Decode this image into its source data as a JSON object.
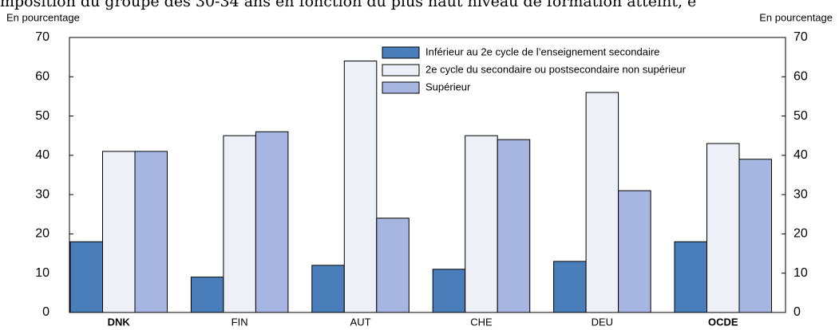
{
  "chart_data": {
    "type": "bar",
    "title": "mposition du groupe des 30-34 ans en fonction du plus haut niveau de formation atteint, e",
    "y_label": "En pourcentage",
    "y2_label": "En pourcentage",
    "categories": [
      "DNK",
      "FIN",
      "AUT",
      "CHE",
      "DEU",
      "OCDE"
    ],
    "bold_categories": [
      true,
      false,
      false,
      false,
      false,
      true
    ],
    "series": [
      {
        "name": "Inférieur au 2e cycle de l’enseignement secondaire",
        "color": "#4a7ebb",
        "values": [
          18,
          9,
          12,
          11,
          13,
          18
        ]
      },
      {
        "name": "2e cycle du secondaire ou postsecondaire non supérieur",
        "color": "#eef0f8",
        "values": [
          41,
          45,
          64,
          45,
          56,
          43
        ]
      },
      {
        "name": "Supérieur",
        "color": "#a6b6e0",
        "values": [
          41,
          46,
          24,
          44,
          31,
          39
        ]
      }
    ],
    "ylim": [
      0,
      70
    ],
    "yticks": [
      0,
      10,
      20,
      30,
      40,
      50,
      60,
      70
    ],
    "y2lim": [
      0,
      70
    ],
    "y2ticks": [
      0,
      10,
      20,
      30,
      40,
      50,
      60,
      70
    ]
  }
}
